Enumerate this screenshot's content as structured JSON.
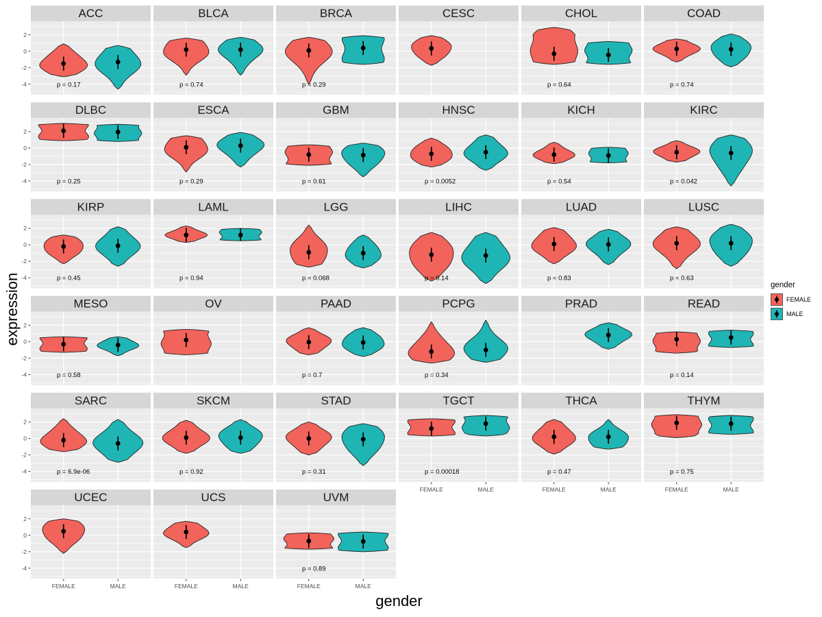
{
  "figure": {
    "y_axis_title": "expression",
    "x_axis_title": "gender",
    "legend": {
      "title": "gender",
      "entries": [
        {
          "label": "FEMALE",
          "color": "#F2635B"
        },
        {
          "label": "MALE",
          "color": "#1FB5B4"
        }
      ]
    },
    "colors": {
      "female": "#F2635B",
      "male": "#1FB5B4",
      "strip_bg": "#D6D6D6",
      "panel_bg": "#EBEBEB",
      "grid": "#FFFFFF",
      "outline": "#212121",
      "tick_text": "#4D4D4D"
    }
  },
  "chart_data": {
    "type": "violin",
    "facet_variable": "cancer type",
    "x": "gender",
    "y": "expression",
    "columns": 6,
    "x_categories": [
      "FEMALE",
      "MALE"
    ],
    "y_ticks": [
      2,
      0,
      -2,
      -4
    ],
    "y_minor_ticks": [
      3,
      1,
      -1,
      -3,
      -5
    ],
    "y_domain_top": 3.65,
    "y_domain_bottom": -5.27,
    "legend_position": "right",
    "facets": [
      {
        "title": "ACC",
        "p_label": "p = 0.17",
        "groups": [
          {
            "gender": "FEMALE",
            "median": -1.5,
            "min": -3.1,
            "max": 0.9,
            "width": 0.95
          },
          {
            "gender": "MALE",
            "median": -1.3,
            "min": -4.6,
            "max": 0.7,
            "width": 0.9
          }
        ]
      },
      {
        "title": "BLCA",
        "p_label": "p = 0.74",
        "groups": [
          {
            "gender": "FEMALE",
            "median": 0.2,
            "min": -2.9,
            "max": 1.6,
            "width": 0.95
          },
          {
            "gender": "MALE",
            "median": 0.2,
            "min": -2.9,
            "max": 1.7,
            "width": 0.85
          }
        ]
      },
      {
        "title": "BRCA",
        "p_label": "p = 0.29",
        "groups": [
          {
            "gender": "FEMALE",
            "median": 0.1,
            "min": -4.0,
            "max": 1.7,
            "width": 0.9
          },
          {
            "gender": "MALE",
            "median": 0.4,
            "min": -1.6,
            "max": 1.9,
            "width": 0.8,
            "shape": "flat"
          }
        ]
      },
      {
        "title": "CESC",
        "p_label": "",
        "groups": [
          {
            "gender": "FEMALE",
            "median": 0.35,
            "min": -1.7,
            "max": 1.9,
            "width": 0.85
          }
        ]
      },
      {
        "title": "CHOL",
        "p_label": "p = 0.64",
        "groups": [
          {
            "gender": "FEMALE",
            "median": -0.3,
            "min": -1.6,
            "max": 2.9,
            "width": 0.9,
            "shape": "flat",
            "mode": -0.4
          },
          {
            "gender": "MALE",
            "median": -0.45,
            "min": -1.6,
            "max": 1.2,
            "width": 0.9,
            "shape": "flat"
          }
        ]
      },
      {
        "title": "COAD",
        "p_label": "p = 0.74",
        "groups": [
          {
            "gender": "FEMALE",
            "median": 0.3,
            "min": -1.3,
            "max": 1.5,
            "width": 0.9
          },
          {
            "gender": "MALE",
            "median": 0.25,
            "min": -1.9,
            "max": 2.1,
            "width": 0.85
          }
        ]
      },
      {
        "title": "DLBC",
        "p_label": "p = 0.25",
        "groups": [
          {
            "gender": "FEMALE",
            "median": 2.1,
            "min": 0.9,
            "max": 3.0,
            "width": 0.95,
            "shape": "flat"
          },
          {
            "gender": "MALE",
            "median": 1.95,
            "min": 0.8,
            "max": 2.9,
            "width": 0.9,
            "shape": "flat"
          }
        ]
      },
      {
        "title": "ESCA",
        "p_label": "p = 0.29",
        "groups": [
          {
            "gender": "FEMALE",
            "median": 0.1,
            "min": -2.9,
            "max": 1.5,
            "width": 0.9
          },
          {
            "gender": "MALE",
            "median": 0.3,
            "min": -2.3,
            "max": 1.9,
            "width": 0.9
          }
        ]
      },
      {
        "title": "GBM",
        "p_label": "p = 0.61",
        "groups": [
          {
            "gender": "FEMALE",
            "median": -0.8,
            "min": -2.1,
            "max": 0.4,
            "width": 0.9,
            "shape": "flat"
          },
          {
            "gender": "MALE",
            "median": -0.85,
            "min": -3.5,
            "max": 0.6,
            "width": 0.9
          }
        ]
      },
      {
        "title": "HNSC",
        "p_label": "p = 0.0052",
        "groups": [
          {
            "gender": "FEMALE",
            "median": -0.7,
            "min": -2.3,
            "max": 1.2,
            "width": 0.9
          },
          {
            "gender": "MALE",
            "median": -0.5,
            "min": -2.7,
            "max": 1.6,
            "width": 0.85
          }
        ]
      },
      {
        "title": "KICH",
        "p_label": "p = 0.54",
        "groups": [
          {
            "gender": "FEMALE",
            "median": -0.8,
            "min": -1.9,
            "max": 0.7,
            "width": 0.8
          },
          {
            "gender": "MALE",
            "median": -0.9,
            "min": -1.8,
            "max": 0.1,
            "width": 0.75,
            "shape": "flat"
          }
        ]
      },
      {
        "title": "KIRC",
        "p_label": "p = 0.042",
        "groups": [
          {
            "gender": "FEMALE",
            "median": -0.5,
            "min": -1.7,
            "max": 0.9,
            "width": 0.9
          },
          {
            "gender": "MALE",
            "median": -0.6,
            "min": -4.6,
            "max": 1.6,
            "width": 0.85
          }
        ]
      },
      {
        "title": "KIRP",
        "p_label": "p = 0.45",
        "groups": [
          {
            "gender": "FEMALE",
            "median": -0.2,
            "min": -2.3,
            "max": 1.2,
            "width": 0.85
          },
          {
            "gender": "MALE",
            "median": -0.1,
            "min": -2.6,
            "max": 2.2,
            "width": 0.85
          }
        ]
      },
      {
        "title": "LAML",
        "p_label": "p = 0.94",
        "groups": [
          {
            "gender": "FEMALE",
            "median": 1.2,
            "min": 0.3,
            "max": 2.3,
            "width": 0.8
          },
          {
            "gender": "MALE",
            "median": 1.2,
            "min": 0.5,
            "max": 2.0,
            "width": 0.8,
            "shape": "flat"
          }
        ]
      },
      {
        "title": "LGG",
        "p_label": "p = 0.068",
        "groups": [
          {
            "gender": "FEMALE",
            "median": -0.9,
            "min": -2.7,
            "max": 2.4,
            "width": 0.8
          },
          {
            "gender": "MALE",
            "median": -1.0,
            "min": -2.8,
            "max": 1.2,
            "width": 0.75
          }
        ]
      },
      {
        "title": "LIHC",
        "p_label": "p = 0.14",
        "groups": [
          {
            "gender": "FEMALE",
            "median": -1.2,
            "min": -4.4,
            "max": 1.5,
            "width": 0.95
          },
          {
            "gender": "MALE",
            "median": -1.3,
            "min": -4.7,
            "max": 1.5,
            "width": 0.95
          }
        ]
      },
      {
        "title": "LUAD",
        "p_label": "p = 0.83",
        "groups": [
          {
            "gender": "FEMALE",
            "median": 0.1,
            "min": -2.3,
            "max": 2.1,
            "width": 0.9
          },
          {
            "gender": "MALE",
            "median": 0.05,
            "min": -2.4,
            "max": 1.9,
            "width": 0.85
          }
        ]
      },
      {
        "title": "LUSC",
        "p_label": "p = 0.63",
        "groups": [
          {
            "gender": "FEMALE",
            "median": 0.2,
            "min": -2.9,
            "max": 2.2,
            "width": 0.9
          },
          {
            "gender": "MALE",
            "median": 0.2,
            "min": -2.6,
            "max": 2.5,
            "width": 0.9
          }
        ]
      },
      {
        "title": "MESO",
        "p_label": "p = 0.58",
        "groups": [
          {
            "gender": "FEMALE",
            "median": -0.3,
            "min": -1.3,
            "max": 0.6,
            "width": 0.9,
            "shape": "flat"
          },
          {
            "gender": "MALE",
            "median": -0.4,
            "min": -1.7,
            "max": 0.6,
            "width": 0.8
          }
        ]
      },
      {
        "title": "OV",
        "p_label": "",
        "groups": [
          {
            "gender": "FEMALE",
            "median": 0.2,
            "min": -1.6,
            "max": 1.5,
            "width": 0.95,
            "shape": "flat"
          }
        ]
      },
      {
        "title": "PAAD",
        "p_label": "p = 0.7",
        "groups": [
          {
            "gender": "FEMALE",
            "median": -0.05,
            "min": -1.6,
            "max": 1.7,
            "width": 0.9
          },
          {
            "gender": "MALE",
            "median": -0.1,
            "min": -1.8,
            "max": 1.7,
            "width": 0.9
          }
        ]
      },
      {
        "title": "PCPG",
        "p_label": "p = 0.34",
        "groups": [
          {
            "gender": "FEMALE",
            "median": -1.2,
            "min": -2.6,
            "max": 2.4,
            "width": 0.9
          },
          {
            "gender": "MALE",
            "median": -1.0,
            "min": -2.5,
            "max": 2.6,
            "width": 0.85
          }
        ]
      },
      {
        "title": "PRAD",
        "p_label": "",
        "groups": [
          {
            "gender": "MALE",
            "median": 0.8,
            "min": -0.9,
            "max": 2.3,
            "width": 0.9
          }
        ]
      },
      {
        "title": "READ",
        "p_label": "p = 0.14",
        "groups": [
          {
            "gender": "FEMALE",
            "median": 0.3,
            "min": -1.4,
            "max": 1.2,
            "width": 0.9,
            "shape": "flat"
          },
          {
            "gender": "MALE",
            "median": 0.5,
            "min": -0.7,
            "max": 1.4,
            "width": 0.85,
            "shape": "flat"
          }
        ]
      },
      {
        "title": "SARC",
        "p_label": "p = 6.9e-06",
        "groups": [
          {
            "gender": "FEMALE",
            "median": -0.2,
            "min": -1.6,
            "max": 2.4,
            "width": 0.9
          },
          {
            "gender": "MALE",
            "median": -0.6,
            "min": -2.9,
            "max": 2.3,
            "width": 0.95
          }
        ]
      },
      {
        "title": "SKCM",
        "p_label": "p = 0.92",
        "groups": [
          {
            "gender": "FEMALE",
            "median": 0.1,
            "min": -1.8,
            "max": 2.2,
            "width": 0.9
          },
          {
            "gender": "MALE",
            "median": 0.1,
            "min": -1.8,
            "max": 2.3,
            "width": 0.9
          }
        ]
      },
      {
        "title": "STAD",
        "p_label": "p = 0.31",
        "groups": [
          {
            "gender": "FEMALE",
            "median": 0.0,
            "min": -2.0,
            "max": 2.0,
            "width": 0.9
          },
          {
            "gender": "MALE",
            "median": -0.1,
            "min": -3.3,
            "max": 1.8,
            "width": 0.9
          }
        ]
      },
      {
        "title": "TGCT",
        "p_label": "p = 0.00018",
        "groups": [
          {
            "gender": "FEMALE",
            "median": 1.2,
            "min": 0.3,
            "max": 2.4,
            "width": 0.9,
            "shape": "flat"
          },
          {
            "gender": "MALE",
            "median": 1.8,
            "min": 0.3,
            "max": 2.8,
            "width": 0.9,
            "shape": "flat",
            "mode": 2.0
          }
        ]
      },
      {
        "title": "THCA",
        "p_label": "p = 0.47",
        "groups": [
          {
            "gender": "FEMALE",
            "median": 0.2,
            "min": -1.9,
            "max": 2.3,
            "width": 0.85
          },
          {
            "gender": "MALE",
            "median": 0.2,
            "min": -1.3,
            "max": 2.3,
            "width": 0.85,
            "mode": -0.1
          }
        ]
      },
      {
        "title": "THYM",
        "p_label": "p = 0.75",
        "groups": [
          {
            "gender": "FEMALE",
            "median": 1.9,
            "min": 0.1,
            "max": 2.9,
            "width": 0.95,
            "shape": "flat",
            "mode": 2.1
          },
          {
            "gender": "MALE",
            "median": 1.8,
            "min": 0.5,
            "max": 2.8,
            "width": 0.85,
            "shape": "flat"
          }
        ]
      },
      {
        "title": "UCEC",
        "p_label": "",
        "groups": [
          {
            "gender": "FEMALE",
            "median": 0.5,
            "min": -2.2,
            "max": 2.0,
            "width": 0.9
          }
        ]
      },
      {
        "title": "UCS",
        "p_label": "",
        "groups": [
          {
            "gender": "FEMALE",
            "median": 0.4,
            "min": -1.5,
            "max": 1.7,
            "width": 0.9
          }
        ]
      },
      {
        "title": "UVM",
        "p_label": "p = 0.89",
        "groups": [
          {
            "gender": "FEMALE",
            "median": -0.7,
            "min": -1.7,
            "max": 0.3,
            "width": 0.95,
            "shape": "flat"
          },
          {
            "gender": "MALE",
            "median": -0.75,
            "min": -2.0,
            "max": 0.4,
            "width": 0.95,
            "shape": "flat"
          }
        ]
      }
    ]
  }
}
